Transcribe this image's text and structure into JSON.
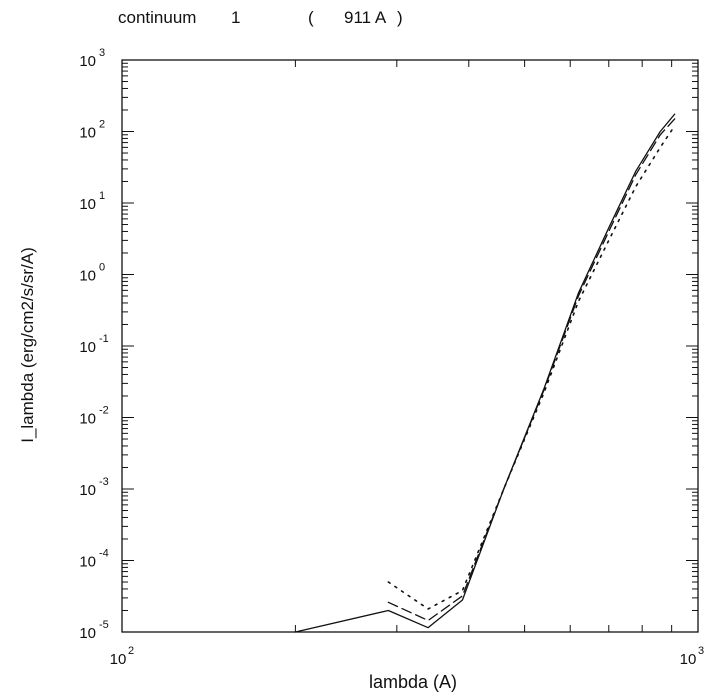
{
  "header": {
    "title": "continuum",
    "number": "1",
    "open_paren": "(",
    "wavelength": "911 A",
    "close_paren": ")"
  },
  "chart_data": {
    "type": "line",
    "xlabel": "lambda (A)",
    "ylabel": "I_lambda (erg/cm2/s/sr/A)",
    "xscale": "log",
    "yscale": "log",
    "xlim": [
      100,
      1000
    ],
    "ylim": [
      1e-05,
      1000
    ],
    "x_ticks": [
      {
        "value": 100,
        "base": "10",
        "exp": "2"
      },
      {
        "value": 1000,
        "base": "10",
        "exp": "3"
      }
    ],
    "y_ticks": [
      {
        "value": 1e-05,
        "base": "10",
        "exp": "-5"
      },
      {
        "value": 0.0001,
        "base": "10",
        "exp": "-4"
      },
      {
        "value": 0.001,
        "base": "10",
        "exp": "-3"
      },
      {
        "value": 0.01,
        "base": "10",
        "exp": "-2"
      },
      {
        "value": 0.1,
        "base": "10",
        "exp": "-1"
      },
      {
        "value": 1,
        "base": "10",
        "exp": "0"
      },
      {
        "value": 10,
        "base": "10",
        "exp": "1"
      },
      {
        "value": 100,
        "base": "10",
        "exp": "2"
      },
      {
        "value": 1000,
        "base": "10",
        "exp": "3"
      }
    ],
    "grid": false,
    "series": [
      {
        "style": "solid",
        "points": [
          [
            200,
            1e-05
          ],
          [
            290,
            2e-05
          ],
          [
            340,
            1.15e-05
          ],
          [
            390,
            2.8e-05
          ],
          [
            460,
            0.001
          ],
          [
            540,
            0.025
          ],
          [
            620,
            0.55
          ],
          [
            700,
            4.5
          ],
          [
            780,
            28
          ],
          [
            860,
            100
          ],
          [
            911,
            175
          ]
        ]
      },
      {
        "style": "dashed",
        "points": [
          [
            290,
            2.6e-05
          ],
          [
            340,
            1.45e-05
          ],
          [
            390,
            3.2e-05
          ],
          [
            460,
            0.001
          ],
          [
            540,
            0.024
          ],
          [
            620,
            0.5
          ],
          [
            700,
            4
          ],
          [
            780,
            25
          ],
          [
            860,
            90
          ],
          [
            911,
            150
          ]
        ]
      },
      {
        "style": "dotted",
        "points": [
          [
            290,
            5e-05
          ],
          [
            340,
            2.1e-05
          ],
          [
            390,
            3.8e-05
          ],
          [
            460,
            0.001
          ],
          [
            540,
            0.022
          ],
          [
            620,
            0.42
          ],
          [
            700,
            3
          ],
          [
            780,
            17
          ],
          [
            860,
            60
          ],
          [
            911,
            120
          ]
        ]
      }
    ]
  }
}
